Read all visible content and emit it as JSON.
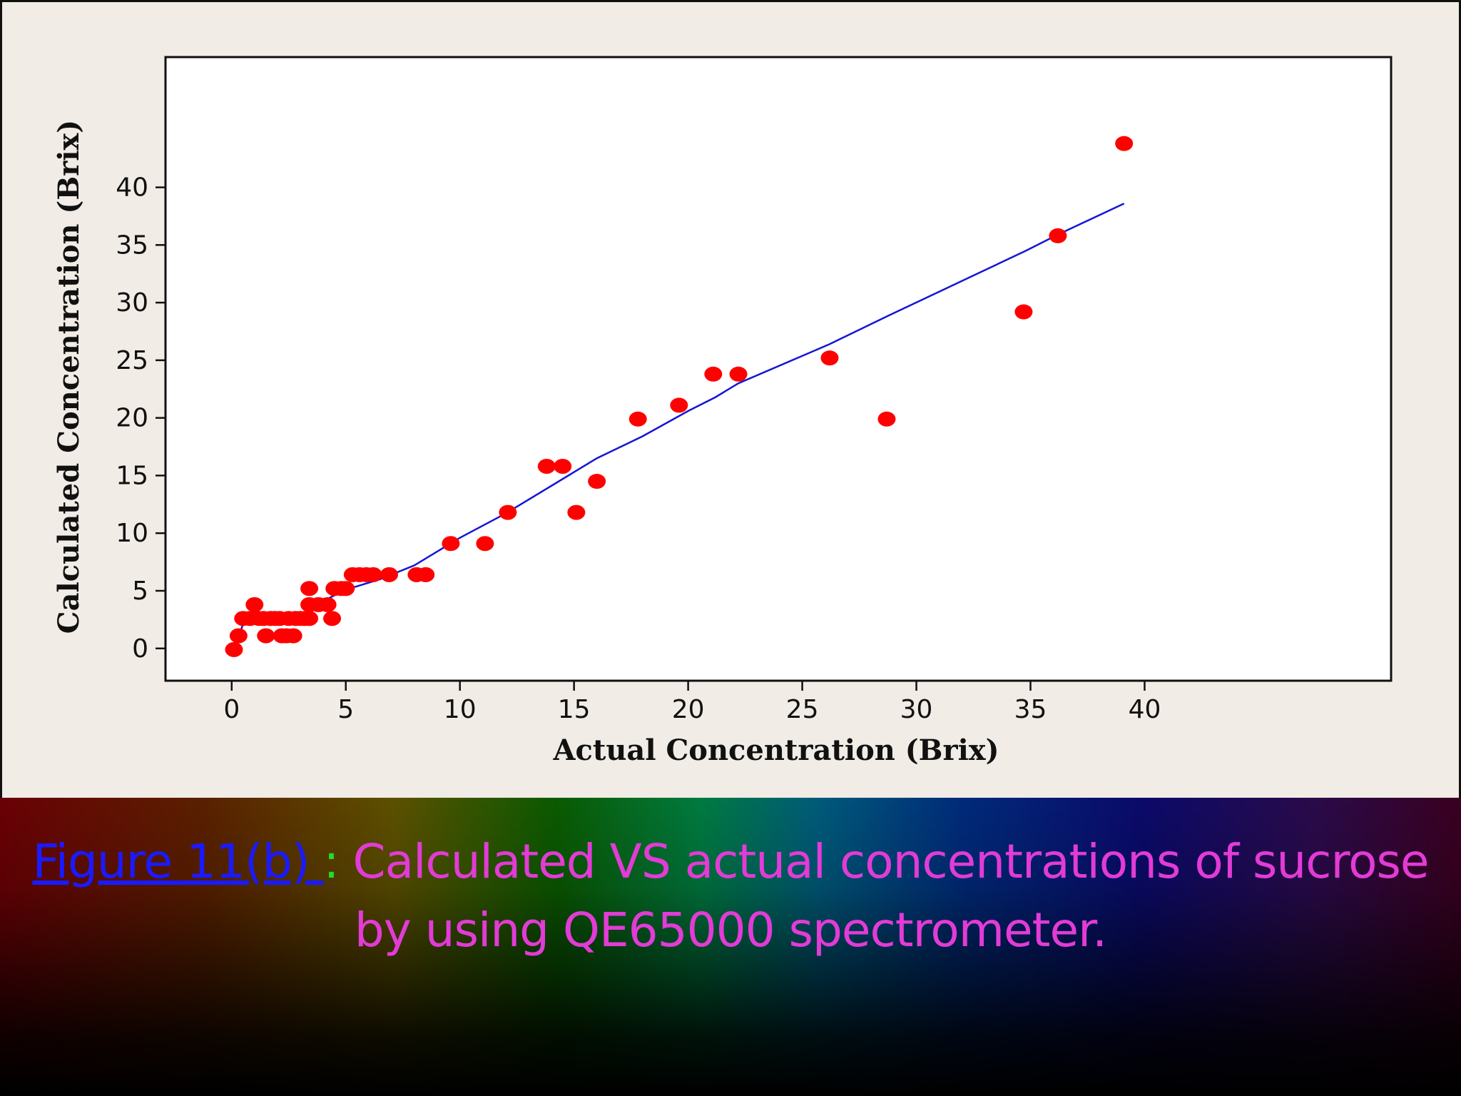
{
  "chart_data": {
    "type": "scatter",
    "xlabel": "Actual Concentration (Brix)",
    "ylabel": "Calculated Concentration (Brix)",
    "xlim": [
      -2.9,
      50.8
    ],
    "ylim": [
      -2.8,
      51.3
    ],
    "xticks": [
      0,
      5,
      10,
      15,
      20,
      25,
      30,
      35,
      40
    ],
    "yticks": [
      0,
      5,
      10,
      15,
      20,
      25,
      30,
      35,
      40
    ],
    "grid": false,
    "colors": {
      "points": "#ff0000",
      "line": "#1515d6",
      "frame": "#111111"
    },
    "series": [
      {
        "type": "scatter",
        "points": [
          [
            0.1,
            -0.1
          ],
          [
            0.3,
            1.1
          ],
          [
            0.5,
            2.6
          ],
          [
            0.8,
            2.6
          ],
          [
            1.0,
            3.8
          ],
          [
            1.2,
            2.6
          ],
          [
            1.4,
            2.6
          ],
          [
            1.5,
            1.1
          ],
          [
            1.7,
            2.6
          ],
          [
            1.9,
            2.6
          ],
          [
            2.1,
            2.6
          ],
          [
            2.2,
            1.1
          ],
          [
            2.4,
            1.1
          ],
          [
            2.5,
            2.6
          ],
          [
            2.7,
            1.1
          ],
          [
            2.8,
            2.6
          ],
          [
            3.0,
            2.6
          ],
          [
            3.2,
            2.6
          ],
          [
            3.4,
            3.8
          ],
          [
            3.4,
            2.6
          ],
          [
            3.4,
            5.2
          ],
          [
            3.8,
            3.8
          ],
          [
            4.2,
            3.8
          ],
          [
            4.4,
            2.6
          ],
          [
            4.5,
            5.2
          ],
          [
            4.8,
            5.2
          ],
          [
            5.0,
            5.2
          ],
          [
            5.3,
            6.4
          ],
          [
            5.6,
            6.4
          ],
          [
            5.9,
            6.4
          ],
          [
            6.2,
            6.4
          ],
          [
            6.9,
            6.4
          ],
          [
            8.1,
            6.4
          ],
          [
            8.5,
            6.4
          ],
          [
            9.6,
            9.1
          ],
          [
            11.1,
            9.1
          ],
          [
            12.1,
            11.8
          ],
          [
            13.8,
            15.8
          ],
          [
            14.5,
            15.8
          ],
          [
            15.1,
            11.8
          ],
          [
            16.0,
            14.5
          ],
          [
            17.8,
            19.9
          ],
          [
            19.6,
            21.1
          ],
          [
            21.1,
            23.8
          ],
          [
            22.2,
            23.8
          ],
          [
            26.2,
            25.2
          ],
          [
            28.7,
            19.9
          ],
          [
            34.7,
            29.2
          ],
          [
            36.2,
            35.8
          ],
          [
            39.1,
            43.8
          ]
        ]
      },
      {
        "type": "line",
        "points": [
          [
            0.1,
            0.0
          ],
          [
            0.5,
            2.1
          ],
          [
            2.0,
            2.6
          ],
          [
            3.0,
            2.8
          ],
          [
            4.0,
            4.1
          ],
          [
            5.0,
            5.1
          ],
          [
            6.5,
            6.0
          ],
          [
            8.0,
            7.2
          ],
          [
            10.0,
            9.6
          ],
          [
            12.0,
            11.7
          ],
          [
            14.0,
            14.1
          ],
          [
            16.0,
            16.5
          ],
          [
            18.0,
            18.4
          ],
          [
            20.0,
            20.6
          ],
          [
            21.2,
            21.8
          ],
          [
            22.2,
            23.0
          ],
          [
            26.2,
            26.4
          ],
          [
            28.7,
            28.8
          ],
          [
            34.8,
            34.5
          ],
          [
            36.2,
            35.9
          ],
          [
            39.1,
            38.6
          ]
        ]
      }
    ]
  },
  "caption": {
    "figure_ref": "Figure 11(b) ",
    "separator": ":",
    "line1": " Calculated VS actual concentrations of sucrose",
    "line2": "by using QE65000 spectrometer."
  }
}
